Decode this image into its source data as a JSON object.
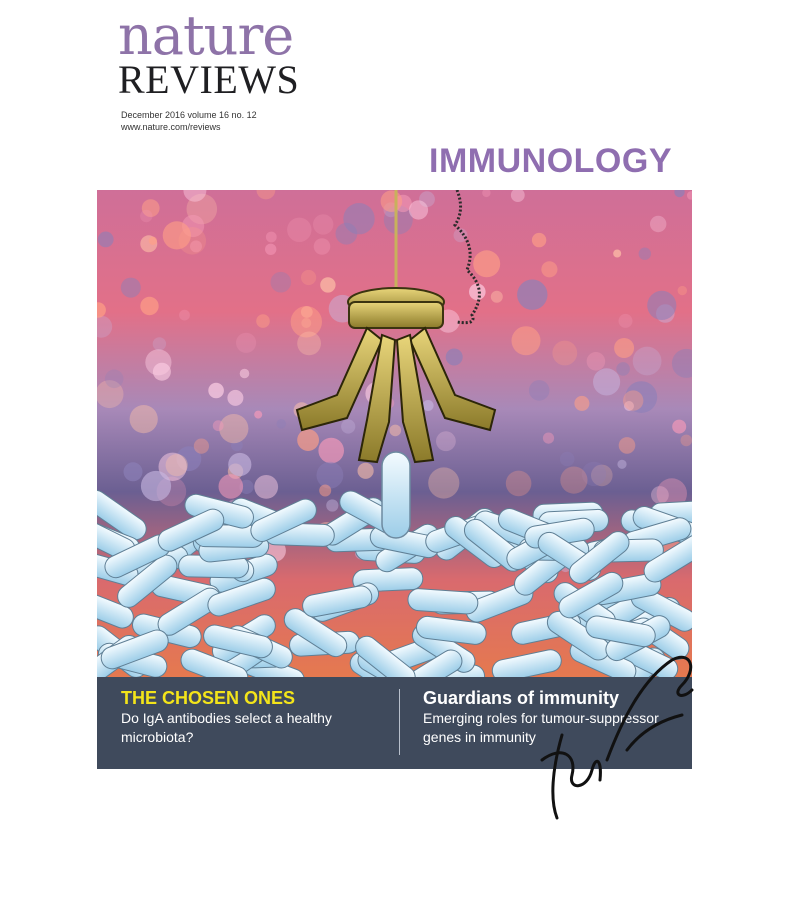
{
  "masthead": {
    "brand_top": "nature",
    "brand_bottom": "REVIEWS",
    "issue_line": "December 2016 volume 16 no. 12",
    "url": "www.nature.com/reviews",
    "journal": "IMMUNOLOGY",
    "brand_color": "#8e73a8"
  },
  "cover_art": {
    "icon": "claw-machine-bacteria-illustration"
  },
  "teasers": {
    "left": {
      "headline": "THE CHOSEN ONES",
      "headline_color": "#f3e41a",
      "text": "Do IgA antibodies select a healthy microbiota?"
    },
    "right": {
      "headline": "Guardians of immunity",
      "headline_color": "#ffffff",
      "text": "Emerging roles for tumour-suppressor genes in immunity"
    }
  },
  "signature": {
    "icon": "handwritten-signature"
  }
}
